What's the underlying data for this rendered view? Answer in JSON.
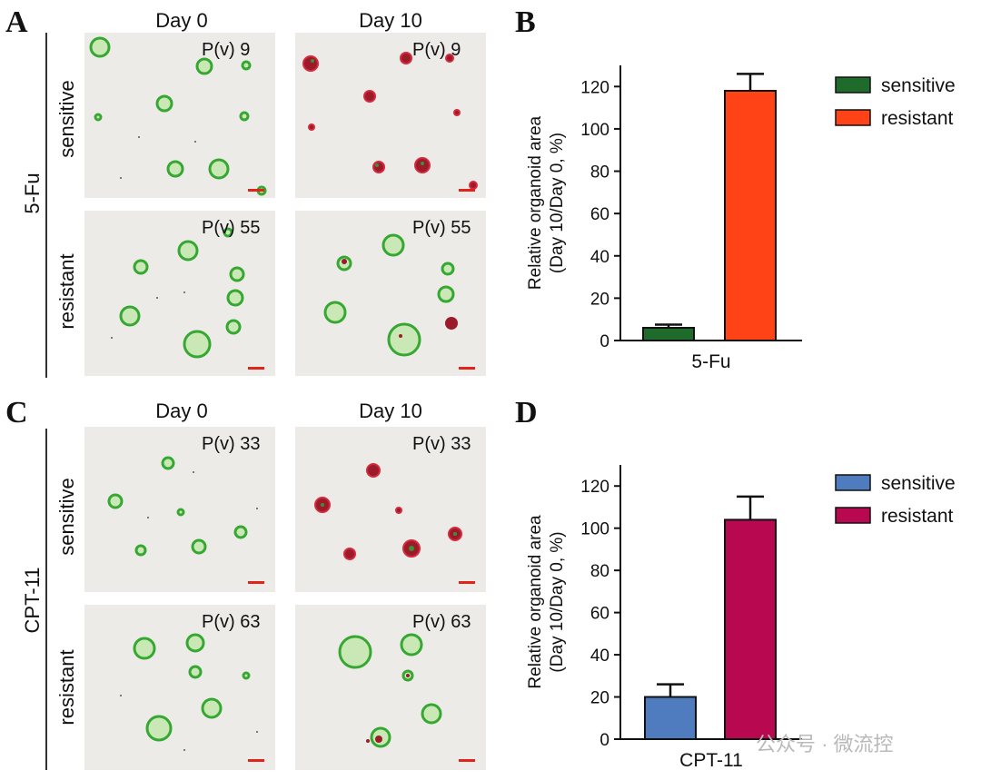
{
  "panels": {
    "A": {
      "letter": "A",
      "drug": "5-Fu",
      "col_labels": [
        "Day 0",
        "Day 10"
      ],
      "row_labels": [
        "sensitive",
        "resistant"
      ],
      "pv": {
        "sensitive": "P(v) 9",
        "resistant": "P(v) 55"
      }
    },
    "C": {
      "letter": "C",
      "drug": "CPT-11",
      "col_labels": [
        "Day 0",
        "Day 10"
      ],
      "row_labels": [
        "sensitive",
        "resistant"
      ],
      "pv": {
        "sensitive": "P(v) 33",
        "resistant": "P(v) 63"
      }
    },
    "B": {
      "letter": "B"
    },
    "D": {
      "letter": "D"
    }
  },
  "chart_data": [
    {
      "type": "bar",
      "panel": "B",
      "categories": [
        "5-Fu"
      ],
      "series": [
        {
          "name": "sensitive",
          "values": [
            6
          ],
          "error": [
            1.5
          ],
          "color": "#1f6b2c"
        },
        {
          "name": "resistant",
          "values": [
            118
          ],
          "error": [
            8
          ],
          "color": "#ff4317"
        }
      ],
      "ylabel": "Relative organoid area\n(Day 10/Day 0, %)",
      "ylabel_lines": [
        "Relative organoid area",
        "(Day 10/Day 0, %)"
      ],
      "xlabel": "5-Fu",
      "ylim": [
        0,
        130
      ],
      "yticks": [
        0,
        20,
        40,
        60,
        80,
        100,
        120
      ],
      "ytick_labels": [
        "0",
        "20",
        "40",
        "60",
        "80",
        "100",
        "120"
      ],
      "legend": [
        "sensitive",
        "resistant"
      ],
      "legend_position": "top-right"
    },
    {
      "type": "bar",
      "panel": "D",
      "categories": [
        "CPT-11"
      ],
      "series": [
        {
          "name": "sensitive",
          "values": [
            20
          ],
          "error": [
            6
          ],
          "color": "#4f7bbf"
        },
        {
          "name": "resistant",
          "values": [
            104
          ],
          "error": [
            11
          ],
          "color": "#b8084f"
        }
      ],
      "ylabel": "Relative organoid area\n(Day 10/Day 0, %)",
      "ylabel_lines": [
        "Relative organoid area",
        "(Day 10/Day 0, %)"
      ],
      "xlabel": "CPT-11",
      "ylim": [
        0,
        130
      ],
      "yticks": [
        0,
        20,
        40,
        60,
        80,
        100,
        120
      ],
      "ytick_labels": [
        "0",
        "20",
        "40",
        "60",
        "80",
        "100",
        "120"
      ],
      "legend": [
        "sensitive",
        "resistant"
      ],
      "legend_position": "top-right"
    }
  ],
  "colors": {
    "scale_bar": "#e2231a",
    "organoid_green": "#3db53a",
    "organoid_dead": "#a01a2a",
    "image_bg": "#ecebe8"
  },
  "watermark": "公众号 · 微流控"
}
